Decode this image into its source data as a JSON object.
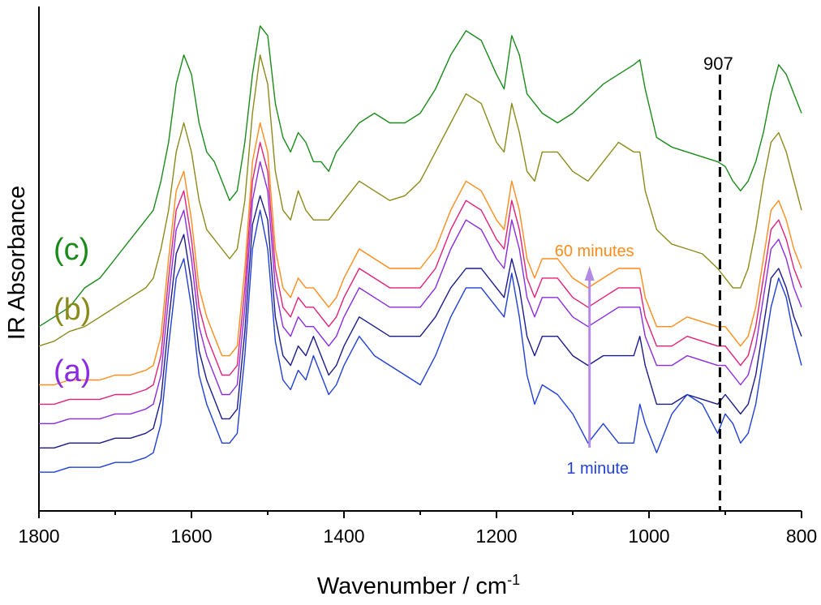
{
  "chart_data": {
    "type": "line",
    "title": "",
    "xlabel": "Wavenumber / cm",
    "xlabel_superscript": "-1",
    "ylabel": "IR Absorbance",
    "xlim": [
      1800,
      800
    ],
    "x_reversed": true,
    "xticks": [
      1800,
      1600,
      1400,
      1200,
      1000,
      800
    ],
    "xtick_labels": [
      "1800",
      "1600",
      "1400",
      "1200",
      "1000",
      "800"
    ],
    "yticks_shown": false,
    "grid": false,
    "legend": "none",
    "marker_line": {
      "x": 907,
      "label": "907",
      "style": "dashed",
      "color": "#000000"
    },
    "annotations": {
      "arrow": {
        "x": 1078,
        "from_label": "1 minute",
        "to_label": "60 minutes",
        "color": "#b38be6"
      },
      "label_60": {
        "text": "60 minutes",
        "color": "#ff8c1a"
      },
      "label_1": {
        "text": "1 minute",
        "color": "#1f3fd6"
      }
    },
    "series": [
      {
        "name": "(c)",
        "color": "#1a8a1a",
        "x": [
          1800,
          1780,
          1760,
          1740,
          1720,
          1700,
          1680,
          1660,
          1650,
          1640,
          1630,
          1620,
          1610,
          1600,
          1590,
          1580,
          1570,
          1560,
          1550,
          1540,
          1530,
          1520,
          1510,
          1500,
          1490,
          1480,
          1470,
          1460,
          1450,
          1440,
          1430,
          1420,
          1410,
          1400,
          1380,
          1360,
          1340,
          1320,
          1300,
          1280,
          1260,
          1240,
          1220,
          1200,
          1190,
          1180,
          1170,
          1160,
          1150,
          1140,
          1120,
          1100,
          1080,
          1060,
          1040,
          1020,
          1012,
          1005,
          990,
          970,
          950,
          930,
          910,
          900,
          890,
          880,
          870,
          860,
          850,
          840,
          830,
          820,
          810,
          800
        ],
        "y": [
          0.36,
          0.38,
          0.4,
          0.44,
          0.46,
          0.5,
          0.54,
          0.58,
          0.6,
          0.66,
          0.74,
          0.86,
          0.92,
          0.88,
          0.78,
          0.72,
          0.7,
          0.66,
          0.62,
          0.64,
          0.74,
          0.88,
          0.98,
          0.96,
          0.82,
          0.75,
          0.72,
          0.76,
          0.74,
          0.7,
          0.7,
          0.68,
          0.72,
          0.74,
          0.78,
          0.8,
          0.78,
          0.78,
          0.8,
          0.85,
          0.92,
          0.97,
          0.95,
          0.88,
          0.85,
          0.96,
          0.92,
          0.84,
          0.82,
          0.8,
          0.78,
          0.8,
          0.83,
          0.86,
          0.88,
          0.9,
          0.91,
          0.85,
          0.75,
          0.73,
          0.72,
          0.71,
          0.7,
          0.69,
          0.66,
          0.64,
          0.66,
          0.7,
          0.76,
          0.84,
          0.9,
          0.88,
          0.84,
          0.8
        ]
      },
      {
        "name": "(b)",
        "color": "#8a8a1a",
        "x": [
          1800,
          1780,
          1760,
          1740,
          1720,
          1700,
          1680,
          1660,
          1650,
          1640,
          1630,
          1620,
          1610,
          1600,
          1590,
          1580,
          1570,
          1560,
          1550,
          1540,
          1530,
          1520,
          1510,
          1500,
          1490,
          1480,
          1470,
          1460,
          1450,
          1440,
          1430,
          1420,
          1410,
          1400,
          1380,
          1360,
          1340,
          1320,
          1300,
          1280,
          1260,
          1240,
          1220,
          1200,
          1190,
          1180,
          1170,
          1160,
          1150,
          1140,
          1120,
          1100,
          1080,
          1060,
          1040,
          1020,
          1012,
          1005,
          990,
          970,
          950,
          930,
          910,
          900,
          890,
          880,
          870,
          860,
          850,
          840,
          830,
          820,
          810,
          800
        ],
        "y": [
          0.32,
          0.33,
          0.35,
          0.36,
          0.38,
          0.4,
          0.42,
          0.44,
          0.46,
          0.52,
          0.6,
          0.72,
          0.78,
          0.72,
          0.62,
          0.56,
          0.54,
          0.52,
          0.5,
          0.52,
          0.62,
          0.8,
          0.92,
          0.86,
          0.68,
          0.6,
          0.58,
          0.64,
          0.6,
          0.58,
          0.58,
          0.58,
          0.6,
          0.62,
          0.66,
          0.64,
          0.62,
          0.63,
          0.66,
          0.72,
          0.78,
          0.84,
          0.82,
          0.74,
          0.72,
          0.82,
          0.76,
          0.68,
          0.66,
          0.72,
          0.72,
          0.68,
          0.66,
          0.7,
          0.74,
          0.72,
          0.72,
          0.64,
          0.56,
          0.53,
          0.52,
          0.51,
          0.48,
          0.46,
          0.44,
          0.44,
          0.48,
          0.56,
          0.66,
          0.74,
          0.76,
          0.72,
          0.66,
          0.6
        ]
      },
      {
        "name": "(a) 60 minutes",
        "color": "#ff8c1a",
        "x": [
          1800,
          1780,
          1760,
          1740,
          1720,
          1700,
          1680,
          1660,
          1650,
          1640,
          1630,
          1620,
          1610,
          1600,
          1590,
          1580,
          1570,
          1560,
          1550,
          1540,
          1530,
          1520,
          1510,
          1500,
          1490,
          1480,
          1470,
          1460,
          1450,
          1440,
          1430,
          1420,
          1410,
          1400,
          1380,
          1360,
          1340,
          1320,
          1300,
          1280,
          1260,
          1240,
          1220,
          1200,
          1190,
          1180,
          1170,
          1160,
          1150,
          1140,
          1120,
          1100,
          1080,
          1060,
          1040,
          1020,
          1012,
          1005,
          990,
          970,
          950,
          930,
          910,
          900,
          890,
          880,
          870,
          860,
          850,
          840,
          830,
          820,
          810,
          800
        ],
        "y": [
          0.24,
          0.24,
          0.25,
          0.25,
          0.25,
          0.26,
          0.26,
          0.27,
          0.28,
          0.34,
          0.5,
          0.64,
          0.68,
          0.58,
          0.44,
          0.38,
          0.34,
          0.3,
          0.3,
          0.32,
          0.48,
          0.7,
          0.78,
          0.72,
          0.52,
          0.44,
          0.42,
          0.46,
          0.44,
          0.44,
          0.42,
          0.4,
          0.42,
          0.46,
          0.52,
          0.5,
          0.48,
          0.48,
          0.48,
          0.52,
          0.6,
          0.66,
          0.64,
          0.58,
          0.56,
          0.66,
          0.6,
          0.5,
          0.46,
          0.5,
          0.5,
          0.46,
          0.44,
          0.46,
          0.48,
          0.48,
          0.48,
          0.42,
          0.36,
          0.36,
          0.38,
          0.37,
          0.36,
          0.36,
          0.34,
          0.32,
          0.34,
          0.4,
          0.5,
          0.6,
          0.62,
          0.58,
          0.52,
          0.48
        ]
      },
      {
        "name": "(a)",
        "color": "#e0207a",
        "x": [
          1800,
          1780,
          1760,
          1740,
          1720,
          1700,
          1680,
          1660,
          1650,
          1640,
          1630,
          1620,
          1610,
          1600,
          1590,
          1580,
          1570,
          1560,
          1550,
          1540,
          1530,
          1520,
          1510,
          1500,
          1490,
          1480,
          1470,
          1460,
          1450,
          1440,
          1430,
          1420,
          1410,
          1400,
          1380,
          1360,
          1340,
          1320,
          1300,
          1280,
          1260,
          1240,
          1220,
          1200,
          1190,
          1180,
          1170,
          1160,
          1150,
          1140,
          1120,
          1100,
          1080,
          1060,
          1040,
          1020,
          1012,
          1005,
          990,
          970,
          950,
          930,
          910,
          900,
          890,
          880,
          870,
          860,
          850,
          840,
          830,
          820,
          810,
          800
        ],
        "y": [
          0.2,
          0.2,
          0.21,
          0.21,
          0.21,
          0.22,
          0.22,
          0.23,
          0.24,
          0.3,
          0.46,
          0.6,
          0.64,
          0.54,
          0.4,
          0.34,
          0.3,
          0.26,
          0.26,
          0.28,
          0.44,
          0.66,
          0.74,
          0.68,
          0.48,
          0.4,
          0.38,
          0.42,
          0.4,
          0.4,
          0.38,
          0.36,
          0.38,
          0.42,
          0.48,
          0.46,
          0.44,
          0.44,
          0.44,
          0.48,
          0.56,
          0.62,
          0.6,
          0.54,
          0.52,
          0.62,
          0.56,
          0.46,
          0.42,
          0.46,
          0.46,
          0.42,
          0.4,
          0.42,
          0.44,
          0.44,
          0.44,
          0.38,
          0.32,
          0.32,
          0.34,
          0.33,
          0.32,
          0.32,
          0.3,
          0.28,
          0.3,
          0.36,
          0.46,
          0.56,
          0.58,
          0.54,
          0.48,
          0.44
        ]
      },
      {
        "name": "(a)",
        "color": "#8a2be2",
        "x": [
          1800,
          1780,
          1760,
          1740,
          1720,
          1700,
          1680,
          1660,
          1650,
          1640,
          1630,
          1620,
          1610,
          1600,
          1590,
          1580,
          1570,
          1560,
          1550,
          1540,
          1530,
          1520,
          1510,
          1500,
          1490,
          1480,
          1470,
          1460,
          1450,
          1440,
          1430,
          1420,
          1410,
          1400,
          1380,
          1360,
          1340,
          1320,
          1300,
          1280,
          1260,
          1240,
          1220,
          1200,
          1190,
          1180,
          1170,
          1160,
          1150,
          1140,
          1120,
          1100,
          1080,
          1060,
          1040,
          1020,
          1012,
          1005,
          990,
          970,
          950,
          930,
          910,
          900,
          890,
          880,
          870,
          860,
          850,
          840,
          830,
          820,
          810,
          800
        ],
        "y": [
          0.16,
          0.16,
          0.17,
          0.17,
          0.17,
          0.18,
          0.18,
          0.19,
          0.2,
          0.26,
          0.42,
          0.56,
          0.6,
          0.5,
          0.36,
          0.3,
          0.26,
          0.22,
          0.22,
          0.24,
          0.4,
          0.62,
          0.7,
          0.64,
          0.44,
          0.36,
          0.34,
          0.38,
          0.36,
          0.36,
          0.34,
          0.32,
          0.34,
          0.38,
          0.44,
          0.42,
          0.4,
          0.4,
          0.4,
          0.44,
          0.52,
          0.58,
          0.56,
          0.5,
          0.48,
          0.58,
          0.52,
          0.42,
          0.38,
          0.42,
          0.42,
          0.38,
          0.36,
          0.38,
          0.4,
          0.4,
          0.4,
          0.34,
          0.28,
          0.28,
          0.3,
          0.29,
          0.28,
          0.28,
          0.26,
          0.24,
          0.26,
          0.32,
          0.42,
          0.52,
          0.54,
          0.5,
          0.44,
          0.4
        ]
      },
      {
        "name": "(a)",
        "color": "#1a1a8a",
        "x": [
          1800,
          1780,
          1760,
          1740,
          1720,
          1700,
          1680,
          1660,
          1650,
          1640,
          1630,
          1620,
          1610,
          1600,
          1590,
          1580,
          1570,
          1560,
          1550,
          1540,
          1530,
          1520,
          1510,
          1500,
          1490,
          1480,
          1470,
          1460,
          1450,
          1440,
          1430,
          1420,
          1410,
          1400,
          1380,
          1360,
          1340,
          1320,
          1300,
          1280,
          1260,
          1240,
          1220,
          1200,
          1190,
          1180,
          1170,
          1160,
          1150,
          1140,
          1120,
          1100,
          1080,
          1060,
          1040,
          1020,
          1012,
          1005,
          990,
          970,
          950,
          930,
          910,
          900,
          890,
          880,
          870,
          860,
          850,
          840,
          830,
          820,
          810,
          800
        ],
        "y": [
          0.11,
          0.11,
          0.12,
          0.12,
          0.12,
          0.13,
          0.13,
          0.14,
          0.15,
          0.21,
          0.37,
          0.51,
          0.55,
          0.45,
          0.31,
          0.25,
          0.21,
          0.17,
          0.17,
          0.19,
          0.35,
          0.57,
          0.63,
          0.58,
          0.38,
          0.3,
          0.28,
          0.32,
          0.3,
          0.34,
          0.3,
          0.26,
          0.28,
          0.32,
          0.38,
          0.36,
          0.34,
          0.34,
          0.34,
          0.38,
          0.44,
          0.48,
          0.48,
          0.44,
          0.42,
          0.5,
          0.44,
          0.34,
          0.3,
          0.34,
          0.34,
          0.3,
          0.28,
          0.3,
          0.3,
          0.3,
          0.34,
          0.28,
          0.2,
          0.2,
          0.22,
          0.21,
          0.2,
          0.22,
          0.2,
          0.18,
          0.2,
          0.26,
          0.36,
          0.46,
          0.48,
          0.44,
          0.38,
          0.34
        ]
      },
      {
        "name": "(a) 1 minute",
        "color": "#1f3fd6",
        "x": [
          1800,
          1780,
          1760,
          1740,
          1720,
          1700,
          1680,
          1660,
          1650,
          1640,
          1630,
          1620,
          1610,
          1600,
          1590,
          1580,
          1570,
          1560,
          1550,
          1540,
          1530,
          1520,
          1510,
          1500,
          1490,
          1480,
          1470,
          1460,
          1450,
          1440,
          1430,
          1420,
          1410,
          1400,
          1380,
          1360,
          1340,
          1320,
          1300,
          1280,
          1260,
          1240,
          1220,
          1200,
          1190,
          1180,
          1170,
          1160,
          1150,
          1140,
          1120,
          1100,
          1080,
          1060,
          1040,
          1020,
          1012,
          1005,
          990,
          970,
          950,
          930,
          910,
          900,
          890,
          880,
          870,
          860,
          850,
          840,
          830,
          820,
          810,
          800
        ],
        "y": [
          0.06,
          0.06,
          0.07,
          0.07,
          0.07,
          0.08,
          0.08,
          0.09,
          0.1,
          0.16,
          0.32,
          0.46,
          0.5,
          0.4,
          0.26,
          0.2,
          0.16,
          0.12,
          0.12,
          0.14,
          0.3,
          0.52,
          0.6,
          0.52,
          0.33,
          0.25,
          0.23,
          0.27,
          0.25,
          0.3,
          0.26,
          0.22,
          0.24,
          0.28,
          0.34,
          0.3,
          0.28,
          0.26,
          0.24,
          0.3,
          0.38,
          0.44,
          0.44,
          0.4,
          0.38,
          0.47,
          0.38,
          0.26,
          0.2,
          0.24,
          0.22,
          0.18,
          0.12,
          0.16,
          0.12,
          0.12,
          0.2,
          0.16,
          0.1,
          0.18,
          0.22,
          0.2,
          0.14,
          0.18,
          0.16,
          0.12,
          0.14,
          0.2,
          0.3,
          0.4,
          0.46,
          0.42,
          0.34,
          0.28
        ]
      }
    ],
    "group_labels": [
      {
        "text": "(c)",
        "color": "#1a8a1a"
      },
      {
        "text": "(b)",
        "color": "#8a8a1a"
      },
      {
        "text": "(a)",
        "color": "#8a2be2"
      }
    ]
  }
}
